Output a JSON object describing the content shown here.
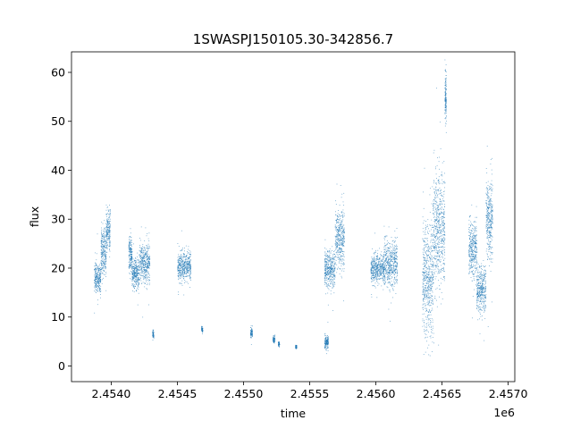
{
  "chart_data": {
    "type": "scatter",
    "title": "1SWASPJ150105.30-342856.7",
    "xlabel": "time",
    "ylabel": "flux",
    "x_offset_label": "1e6",
    "xlim": [
      2453700,
      2457050
    ],
    "ylim": [
      -3.2,
      64.2
    ],
    "x_ticks": [
      2454000,
      2454500,
      2455000,
      2455500,
      2456000,
      2456500,
      2457000
    ],
    "x_tick_labels": [
      "2.4540",
      "2.4545",
      "2.4550",
      "2.4555",
      "2.4560",
      "2.4565",
      "2.4570"
    ],
    "y_ticks": [
      0,
      10,
      20,
      30,
      40,
      50,
      60
    ],
    "y_tick_labels": [
      "0",
      "10",
      "20",
      "30",
      "40",
      "50",
      "60"
    ],
    "grid": false,
    "marker_color": "#1f77b4",
    "series": [
      {
        "values_description_only_in_ranges": true,
        "segments": [
          {
            "x": [
              2453870,
              2453920
            ],
            "y_center": 18,
            "y_spread": 3
          },
          {
            "x": [
              2453920,
              2453960
            ],
            "y_center": 23,
            "y_spread": 5
          },
          {
            "x": [
              2453960,
              2453990
            ],
            "y_center": 28,
            "y_spread": 4
          },
          {
            "x": [
              2454130,
              2454155
            ],
            "y_center": 23,
            "y_spread": 4
          },
          {
            "x": [
              2454155,
              2454210
            ],
            "y_center": 19,
            "y_spread": 3
          },
          {
            "x": [
              2454210,
              2454290
            ],
            "y_center": 21,
            "y_spread": 4
          },
          {
            "x": [
              2454310,
              2454320
            ],
            "y_center": 6.5,
            "y_spread": 1
          },
          {
            "x": [
              2454500,
              2454600
            ],
            "y_center": 20.5,
            "y_spread": 3
          },
          {
            "x": [
              2454680,
              2454690
            ],
            "y_center": 7.5,
            "y_spread": 0.6
          },
          {
            "x": [
              2455050,
              2455065
            ],
            "y_center": 6.8,
            "y_spread": 1
          },
          {
            "x": [
              2455220,
              2455235
            ],
            "y_center": 5.5,
            "y_spread": 0.8
          },
          {
            "x": [
              2455260,
              2455270
            ],
            "y_center": 4.5,
            "y_spread": 0.5
          },
          {
            "x": [
              2455390,
              2455400
            ],
            "y_center": 4,
            "y_spread": 0.4
          },
          {
            "x": [
              2455610,
              2455640
            ],
            "y_center": 5,
            "y_spread": 1.5
          },
          {
            "x": [
              2455610,
              2455690
            ],
            "y_center": 20,
            "y_spread": 4
          },
          {
            "x": [
              2455690,
              2455760
            ],
            "y_center": 26,
            "y_spread": 6
          },
          {
            "x": [
              2455960,
              2456060
            ],
            "y_center": 20,
            "y_spread": 3
          },
          {
            "x": [
              2456060,
              2456160
            ],
            "y_center": 21,
            "y_spread": 5
          },
          {
            "x": [
              2456350,
              2456430
            ],
            "y_center": 18,
            "y_spread": 12
          },
          {
            "x": [
              2456430,
              2456520
            ],
            "y_center": 28,
            "y_spread": 12
          },
          {
            "x": [
              2456520,
              2456530
            ],
            "y_center": 55,
            "y_spread": 5
          },
          {
            "x": [
              2456700,
              2456760
            ],
            "y_center": 24,
            "y_spread": 6
          },
          {
            "x": [
              2456760,
              2456830
            ],
            "y_center": 16,
            "y_spread": 5
          },
          {
            "x": [
              2456830,
              2456880
            ],
            "y_center": 30,
            "y_spread": 8
          }
        ]
      }
    ]
  }
}
